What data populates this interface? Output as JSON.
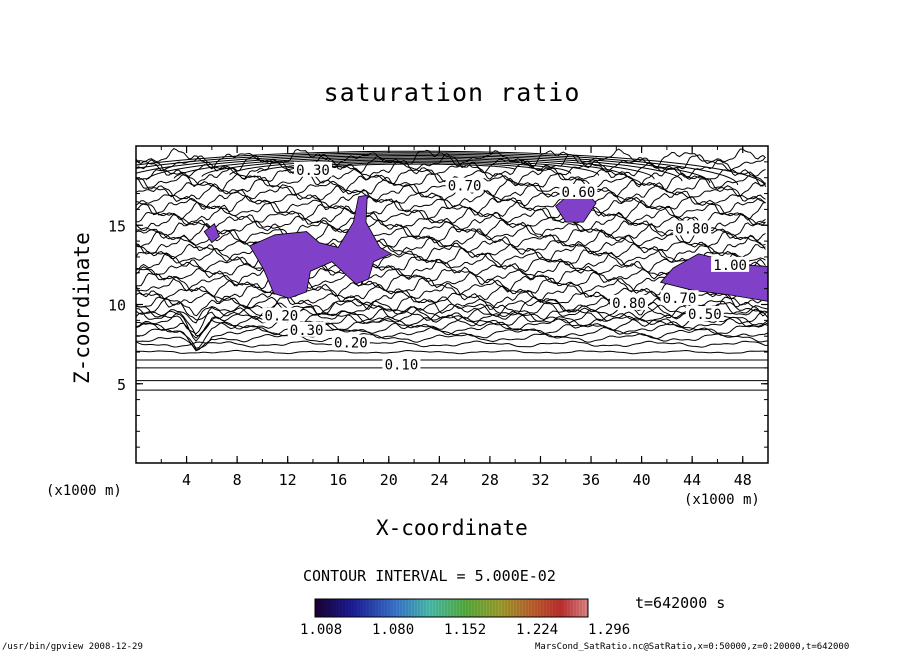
{
  "chart_data": {
    "type": "contour",
    "title": "saturation ratio",
    "xlabel": "X-coordinate",
    "ylabel": "Z-coordinate",
    "x_unit": "(x1000 m)",
    "x_ticks": [
      "4",
      "8",
      "12",
      "16",
      "20",
      "24",
      "28",
      "32",
      "36",
      "40",
      "44",
      "48"
    ],
    "y_ticks": [
      "5",
      "10",
      "15"
    ],
    "xlim": [
      0,
      50
    ],
    "ylim": [
      0,
      20
    ],
    "contour_interval": "CONTOUR INTERVAL = 5.000E-02",
    "contour_labels": [
      {
        "text": "0.10",
        "x": 21,
        "z": 6.2
      },
      {
        "text": "0.20",
        "x": 17,
        "z": 7.6
      },
      {
        "text": "0.30",
        "x": 13.5,
        "z": 8.4
      },
      {
        "text": "0.20",
        "x": 11.5,
        "z": 9.3
      },
      {
        "text": "0.50",
        "x": 45,
        "z": 9.4
      },
      {
        "text": "0.70",
        "x": 43,
        "z": 10.4
      },
      {
        "text": "0.80",
        "x": 39,
        "z": 10.1
      },
      {
        "text": "1.00",
        "x": 47,
        "z": 12.5
      },
      {
        "text": "0.60",
        "x": 35,
        "z": 17.1
      },
      {
        "text": "0.70",
        "x": 26,
        "z": 17.5
      },
      {
        "text": "0.30",
        "x": 14,
        "z": 18.5
      },
      {
        "text": "0.80",
        "x": 44,
        "z": 14.8
      }
    ],
    "supersaturated_regions": "purple fill where ratio > 1.0",
    "colorbar": {
      "ticks": [
        "1.008",
        "1.080",
        "1.152",
        "1.224",
        "1.296"
      ],
      "range": [
        1.008,
        1.296
      ],
      "colors": [
        "#1a0033",
        "#1e1e9a",
        "#3c7ad0",
        "#4cc0b0",
        "#58b040",
        "#a0a030",
        "#c06030",
        "#c03030",
        "#d07070"
      ]
    },
    "time_label": "t=642000 s",
    "colors": {
      "fill": "#8040c8",
      "line": "#000000"
    }
  },
  "footer": {
    "left": "/usr/bin/gpview   2008-12-29",
    "right": "MarsCond_SatRatio.nc@SatRatio,x=0:50000,z=0:20000,t=642000"
  }
}
